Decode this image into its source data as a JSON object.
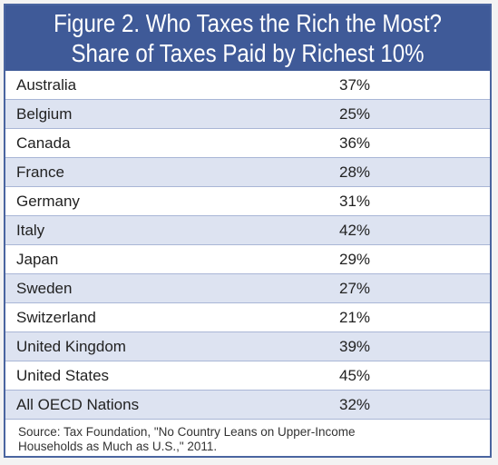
{
  "header": {
    "title_line1": "Figure 2. Who Taxes the Rich the Most?",
    "title_line2": "Share of Taxes Paid by Richest 10%"
  },
  "chart_data": {
    "type": "table",
    "title": "Figure 2. Who Taxes the Rich the Most? Share of Taxes Paid by Richest 10%",
    "categories": [
      "Australia",
      "Belgium",
      "Canada",
      "France",
      "Germany",
      "Italy",
      "Japan",
      "Sweden",
      "Switzerland",
      "United Kingdom",
      "United States",
      "All OECD Nations"
    ],
    "values": [
      37,
      25,
      36,
      28,
      31,
      42,
      29,
      27,
      21,
      39,
      45,
      32
    ],
    "labels": [
      "37%",
      "25%",
      "36%",
      "28%",
      "31%",
      "42%",
      "29%",
      "27%",
      "21%",
      "39%",
      "45%",
      "32%"
    ],
    "rows": [
      {
        "country": "Australia",
        "share": "37%"
      },
      {
        "country": "Belgium",
        "share": "25%"
      },
      {
        "country": "Canada",
        "share": "36%"
      },
      {
        "country": "France",
        "share": "28%"
      },
      {
        "country": "Germany",
        "share": "31%"
      },
      {
        "country": "Italy",
        "share": "42%"
      },
      {
        "country": "Japan",
        "share": "29%"
      },
      {
        "country": "Sweden",
        "share": "27%"
      },
      {
        "country": "Switzerland",
        "share": "21%"
      },
      {
        "country": "United Kingdom",
        "share": "39%"
      },
      {
        "country": "United States",
        "share": "45%"
      },
      {
        "country": "All OECD Nations",
        "share": "32%"
      }
    ]
  },
  "source": {
    "line1": "Source: Tax Foundation, \"No Country Leans on Upper-Income",
    "line2": "Households as Much as U.S.,\" 2011."
  },
  "colors": {
    "header_bg": "#3f5a98",
    "row_alt": "#dde3f1",
    "row_white": "#ffffff",
    "border": "#4a65a0"
  }
}
